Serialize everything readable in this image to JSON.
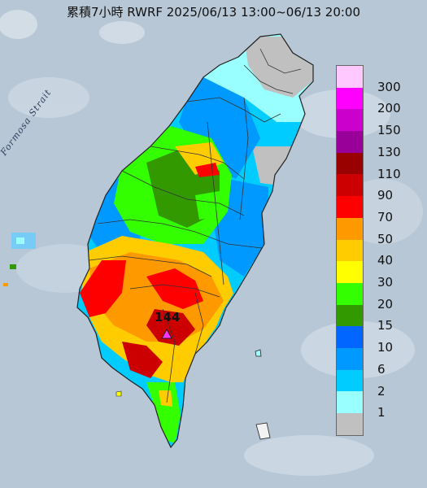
{
  "title": "累積7小時 RWRF 2025/06/13 13:00~06/13 20:00",
  "strait_label": "Formosa Strait",
  "peak": {
    "value": "144",
    "marker": "triangle-marker"
  },
  "legend": {
    "labels": [
      "300",
      "200",
      "150",
      "130",
      "110",
      "90",
      "70",
      "50",
      "40",
      "30",
      "20",
      "15",
      "10",
      "6",
      "2",
      "1"
    ],
    "colors": [
      "#ffc8ff",
      "#ff00ff",
      "#cc00cc",
      "#990099",
      "#990000",
      "#cc0000",
      "#ff0000",
      "#ff9900",
      "#ffcc00",
      "#ffff00",
      "#33ff00",
      "#339900",
      "#0066ff",
      "#0099ff",
      "#00ccff",
      "#99ffff",
      "#c0c0c0"
    ]
  },
  "map_colors": {
    "sea": "#b8c7d6",
    "no_data": "#c0c0c0"
  }
}
